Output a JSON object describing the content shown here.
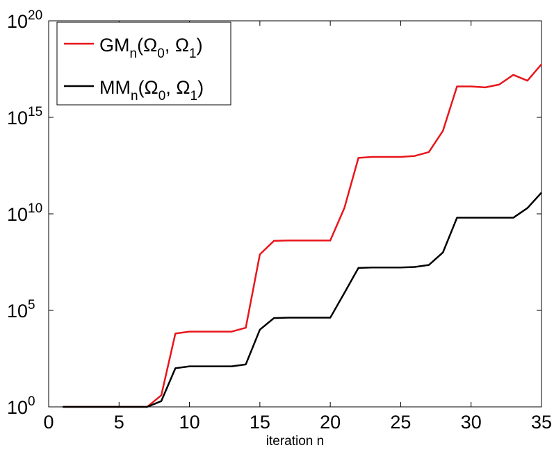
{
  "chart_data": {
    "type": "line",
    "title": "",
    "xlabel": "iteration n",
    "ylabel": "",
    "xlim": [
      0,
      35
    ],
    "ylim_exponent": [
      0,
      20
    ],
    "yscale": "log",
    "grid": false,
    "legend_position": "top-left",
    "x_ticks": [
      "0",
      "5",
      "10",
      "15",
      "20",
      "25",
      "30",
      "35"
    ],
    "y_ticks": [
      {
        "base": "10",
        "exp": "0",
        "value": 0
      },
      {
        "base": "10",
        "exp": "5",
        "value": 5
      },
      {
        "base": "10",
        "exp": "10",
        "value": 10
      },
      {
        "base": "10",
        "exp": "15",
        "value": 15
      },
      {
        "base": "10",
        "exp": "20",
        "value": 20
      }
    ],
    "x": [
      1,
      2,
      3,
      4,
      5,
      6,
      7,
      8,
      9,
      10,
      11,
      12,
      13,
      14,
      15,
      16,
      17,
      18,
      19,
      20,
      21,
      22,
      23,
      24,
      25,
      26,
      27,
      28,
      29,
      30,
      31,
      32,
      33,
      34,
      35
    ],
    "series": [
      {
        "key": "gm",
        "color": "#e8161b",
        "legend": {
          "main": "GM",
          "sub": "n",
          "open": "(Ω",
          "sub0": "0",
          "mid": ", Ω",
          "sub1": "1",
          "close": ")"
        },
        "log10_values": [
          0,
          0,
          0,
          0,
          0,
          0,
          0,
          0.6,
          3.8,
          3.9,
          3.9,
          3.9,
          3.9,
          4.1,
          7.9,
          8.6,
          8.62,
          8.62,
          8.62,
          8.62,
          10.3,
          12.9,
          12.95,
          12.95,
          12.95,
          13.0,
          13.2,
          14.3,
          16.6,
          16.6,
          16.55,
          16.7,
          17.2,
          16.9,
          17.75
        ]
      },
      {
        "key": "mm",
        "color": "#000000",
        "legend": {
          "main": "MM",
          "sub": "n",
          "open": "(Ω",
          "sub0": "0",
          "mid": ", Ω",
          "sub1": "1",
          "close": ")"
        },
        "log10_values": [
          0,
          0,
          0,
          0,
          0,
          0,
          0,
          0.3,
          2.0,
          2.1,
          2.1,
          2.1,
          2.1,
          2.2,
          4.0,
          4.6,
          4.62,
          4.62,
          4.62,
          4.62,
          5.9,
          7.2,
          7.22,
          7.22,
          7.22,
          7.25,
          7.35,
          8.0,
          9.8,
          9.8,
          9.8,
          9.8,
          9.8,
          10.3,
          11.1
        ]
      }
    ]
  }
}
